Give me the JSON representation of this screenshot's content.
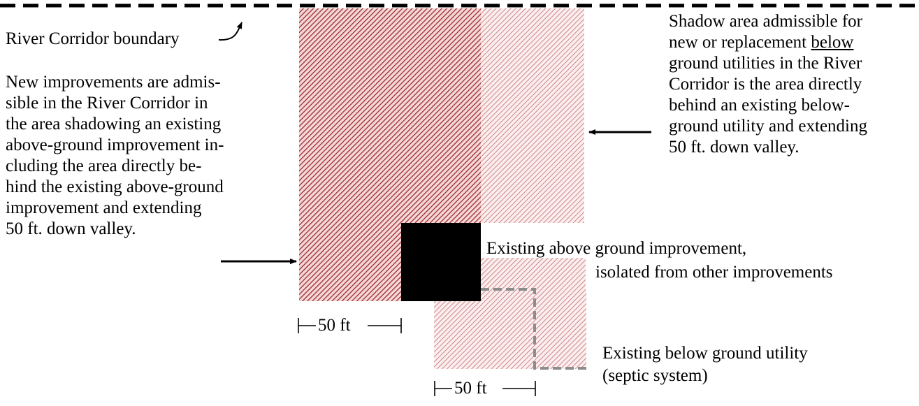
{
  "boundary_label": "River Corridor boundary",
  "left_description": [
    "New improvements are admis-",
    "sible in the River Corridor in",
    "the area shadowing an existing",
    "above-ground improvement in-",
    "cluding the area directly be-",
    "hind the existing above-ground",
    "improvement and extending",
    "50 ft. down valley."
  ],
  "right_description": {
    "line1": "Shadow area admissible for",
    "line2_before": "new or replacement ",
    "line2_underlined": "below",
    "lines_rest": [
      "ground utilities in the River",
      "Corridor is the area directly",
      "behind an existing below-",
      "ground utility and extending",
      "50 ft. down valley."
    ]
  },
  "improvement_label": {
    "line1": "Existing above ground improvement,",
    "line2": "isolated from other improvements"
  },
  "utility_label": {
    "line1": "Existing below ground utility",
    "line2": "(septic system)"
  },
  "dimension_labels": {
    "improvement_width": "50 ft",
    "utility_width": "50 ft"
  },
  "colors": {
    "dark_hatch": "#a0282d",
    "light_hatch": "#c97a7c",
    "improvement_fill": "#000000",
    "utility_outline": "#8c8c8c",
    "boundary_line": "#000000"
  }
}
